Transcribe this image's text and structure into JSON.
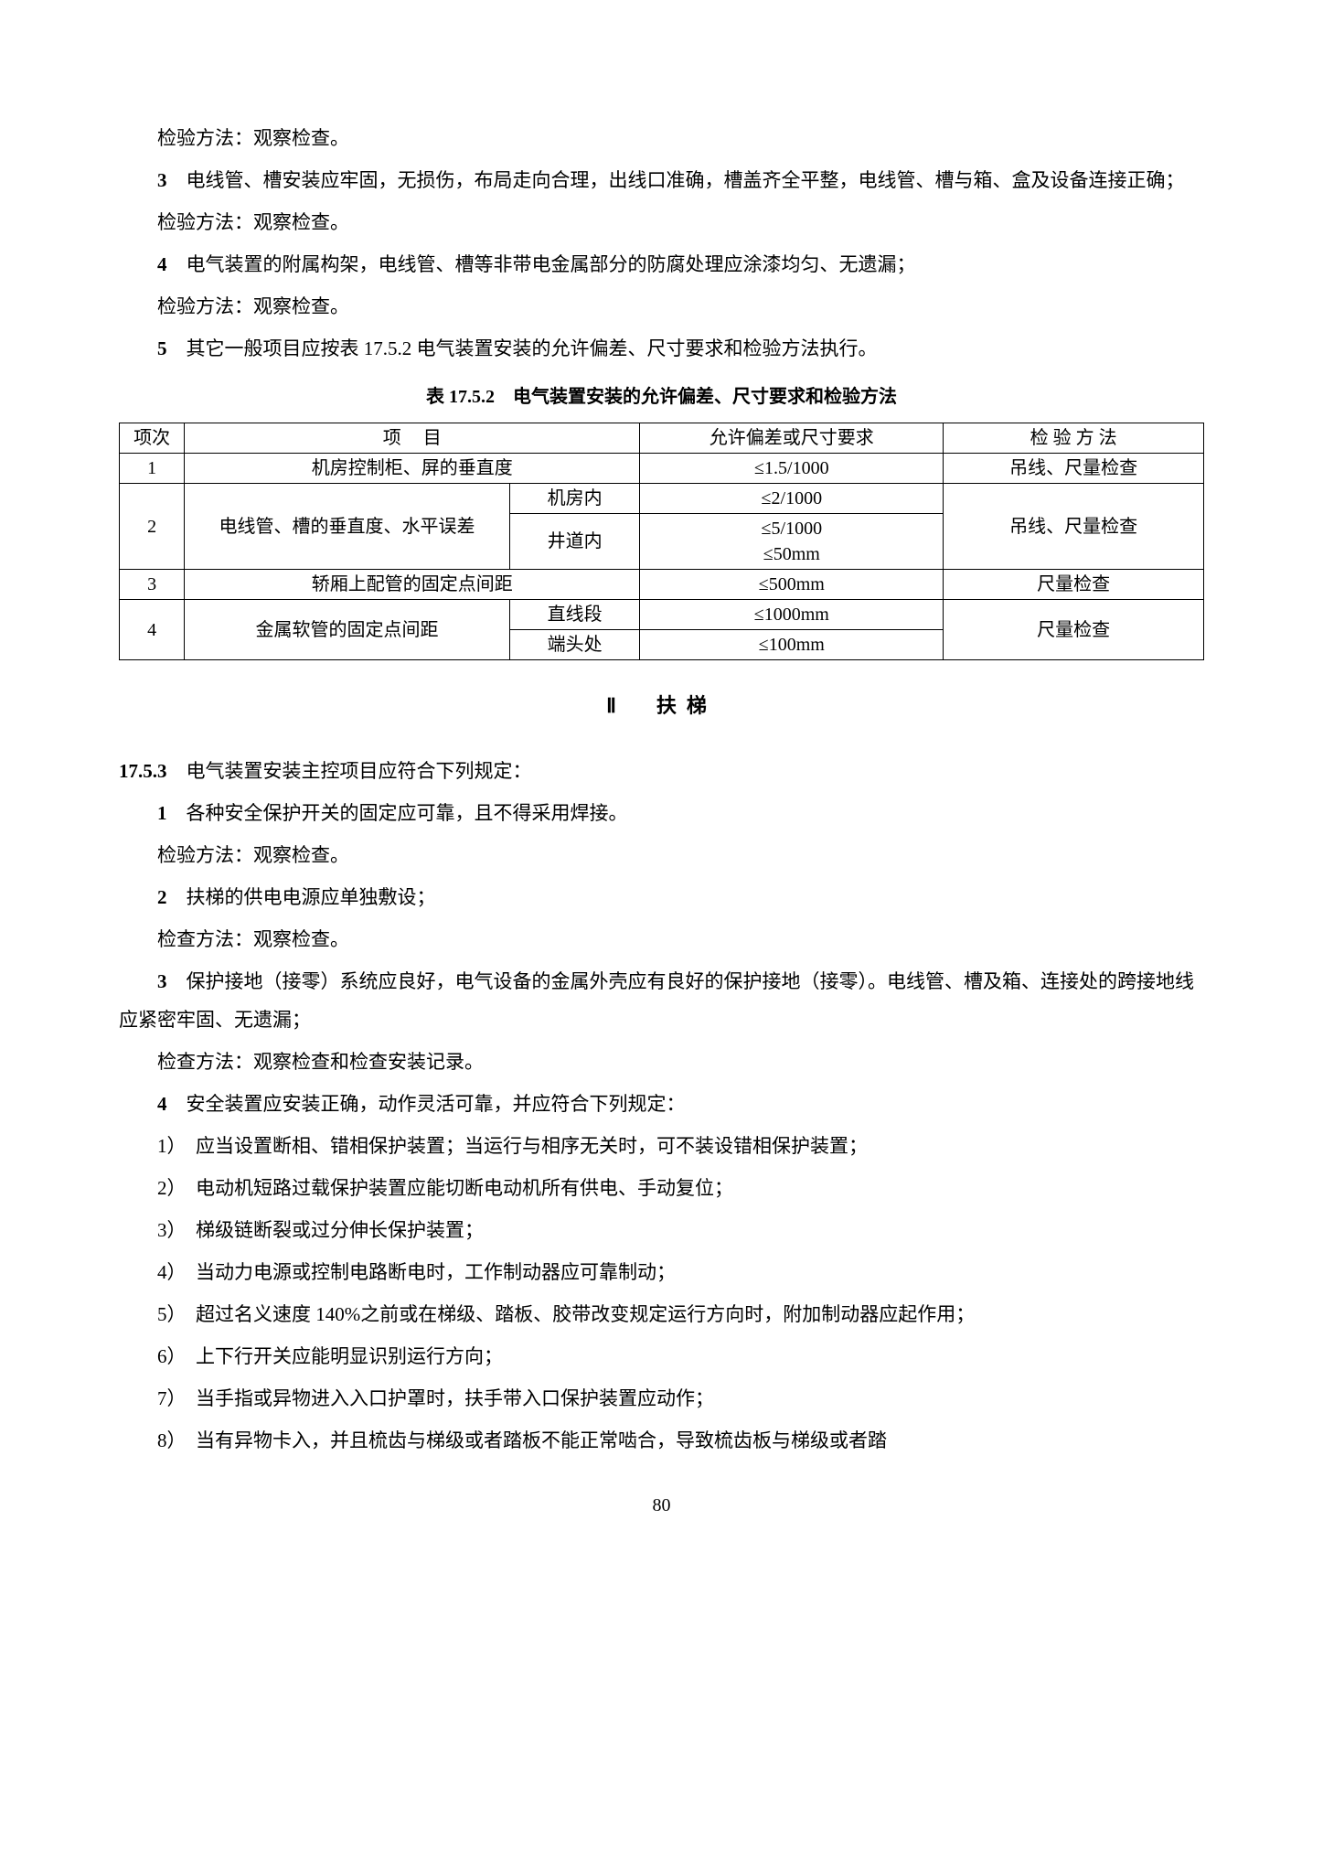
{
  "top_paragraphs": {
    "p0": "检验方法：观察检查。",
    "p1_num": "3",
    "p1": "　电线管、槽安装应牢固，无损伤，布局走向合理，出线口准确，槽盖齐全平整，电线管、槽与箱、盒及设备连接正确；",
    "p2": "检验方法：观察检查。",
    "p3_num": "4",
    "p3": "　电气装置的附属构架，电线管、槽等非带电金属部分的防腐处理应涂漆均匀、无遗漏；",
    "p4": "检验方法：观察检查。",
    "p5_num": "5",
    "p5": "　其它一般项目应按表 17.5.2 电气装置安装的允许偏差、尺寸要求和检验方法执行。"
  },
  "table": {
    "caption": "表 17.5.2　电气装置安装的允许偏差、尺寸要求和检验方法",
    "headers": {
      "seq": "项次",
      "item_a": "项",
      "item_b": "目",
      "req": "允许偏差或尺寸要求",
      "method": "检 验 方 法"
    },
    "row1": {
      "seq": "1",
      "item": "机房控制柜、屏的垂直度",
      "req": "≤1.5/1000",
      "method": "吊线、尺量检查"
    },
    "row2": {
      "seq": "2",
      "item": "电线管、槽的垂直度、水平误差",
      "sub1": "机房内",
      "req1": "≤2/1000",
      "sub2": "井道内",
      "req2a": "≤5/1000",
      "req2b": "≤50mm",
      "method": "吊线、尺量检查"
    },
    "row3": {
      "seq": "3",
      "item": "轿厢上配管的固定点间距",
      "req": "≤500mm",
      "method": "尺量检查"
    },
    "row4": {
      "seq": "4",
      "item": "金属软管的固定点间距",
      "sub1": "直线段",
      "req1": "≤1000mm",
      "sub2": "端头处",
      "req2": "≤100mm",
      "method": "尺量检查"
    }
  },
  "section2": {
    "heading": "Ⅱ　扶梯",
    "s1753_num": "17.5.3",
    "s1753": "　电气装置安装主控项目应符合下列规定：",
    "i1_num": "1",
    "i1": "　各种安全保护开关的固定应可靠，且不得采用焊接。",
    "i1m": "检验方法：观察检查。",
    "i2_num": "2",
    "i2": "　扶梯的供电电源应单独敷设；",
    "i2m": "检查方法：观察检查。",
    "i3_num": "3",
    "i3": "　保护接地（接零）系统应良好，电气设备的金属外壳应有良好的保护接地（接零）。电线管、槽及箱、连接处的跨接地线应紧密牢固、无遗漏；",
    "i3m": "检查方法：观察检查和检查安装记录。",
    "i4_num": "4",
    "i4": "　安全装置应安装正确，动作灵活可靠，并应符合下列规定：",
    "l1": "1）　应当设置断相、错相保护装置；当运行与相序无关时，可不装设错相保护装置；",
    "l2": "2）　电动机短路过载保护装置应能切断电动机所有供电、手动复位；",
    "l3": "3）　梯级链断裂或过分伸长保护装置；",
    "l4": "4）　当动力电源或控制电路断电时，工作制动器应可靠制动；",
    "l5": "5）　超过名义速度 140%之前或在梯级、踏板、胶带改变规定运行方向时，附加制动器应起作用；",
    "l6": "6）　上下行开关应能明显识别运行方向；",
    "l7": "7）　当手指或异物进入入口护罩时，扶手带入口保护装置应动作；",
    "l8": "8）　当有异物卡入，并且梳齿与梯级或者踏板不能正常啮合，导致梳齿板与梯级或者踏"
  },
  "page_number": "80"
}
